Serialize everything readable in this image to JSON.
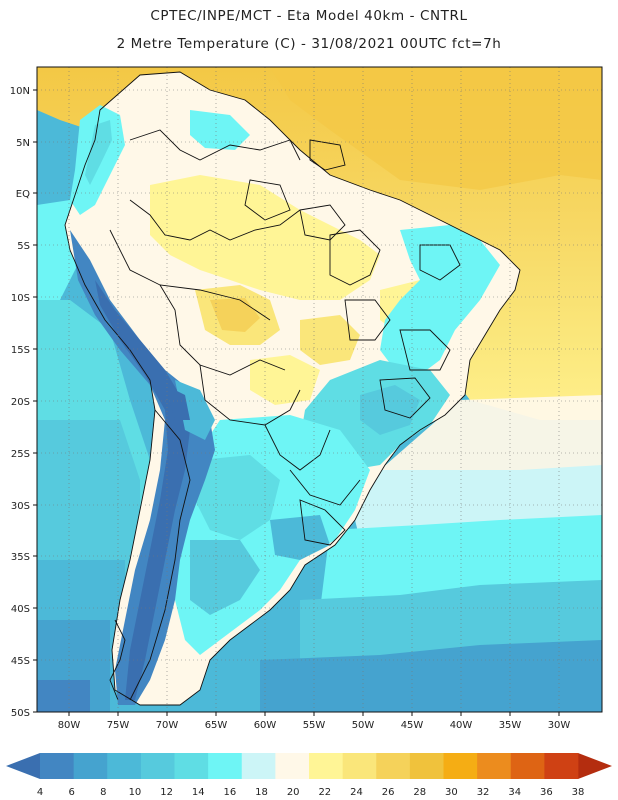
{
  "title": {
    "line1": "CPTEC/INPE/MCT -  Eta Model 40km - CNTRL",
    "line2": "2 Metre Temperature (C) - 31/08/2021 00UTC fct=7h"
  },
  "map": {
    "lat_labels": [
      "10N",
      "5N",
      "EQ",
      "5S",
      "10S",
      "15S",
      "20S",
      "25S",
      "30S",
      "35S",
      "40S",
      "45S",
      "50S"
    ],
    "lon_labels": [
      "80W",
      "75W",
      "70W",
      "65W",
      "60W",
      "55W",
      "50W",
      "45W",
      "40W",
      "35W",
      "30W"
    ]
  },
  "colorbar": {
    "ticks": [
      "4",
      "6",
      "8",
      "10",
      "12",
      "14",
      "16",
      "18",
      "20",
      "22",
      "24",
      "26",
      "28",
      "30",
      "32",
      "34",
      "36",
      "38"
    ],
    "colors": [
      "#3a6fb0",
      "#4286c2",
      "#45a3cf",
      "#4cb9d8",
      "#56cadd",
      "#5fdde4",
      "#6ef5f5",
      "#ccf5f7",
      "#fff8e8",
      "#fff596",
      "#fae67a",
      "#f5d25a",
      "#f0c23c",
      "#f5ad14",
      "#ec8c1e",
      "#de6414",
      "#cf4114",
      "#b42d0f"
    ]
  }
}
